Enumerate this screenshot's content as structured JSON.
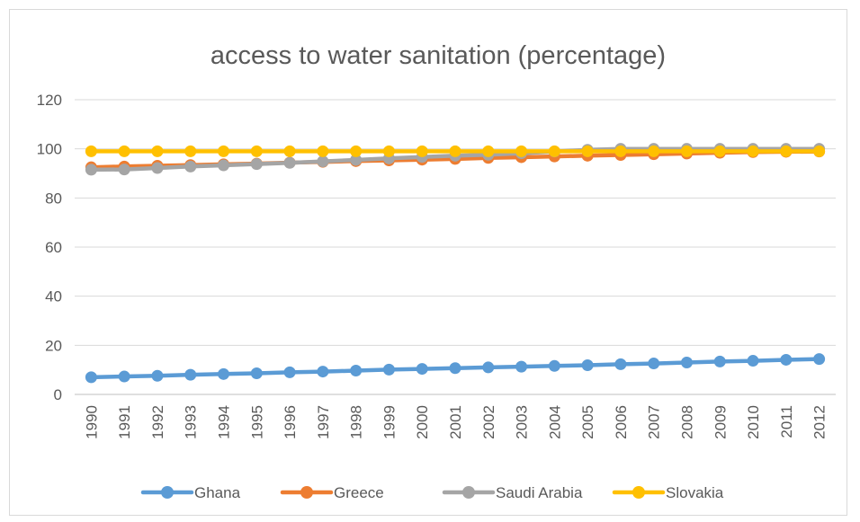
{
  "chart_data": {
    "type": "line",
    "title": "access to water sanitation (percentage)",
    "xlabel": "",
    "ylabel": "",
    "ylim": [
      0,
      120
    ],
    "yticks": [
      0,
      20,
      40,
      60,
      80,
      100,
      120
    ],
    "grid": true,
    "legend_position": "bottom",
    "x": [
      "1990",
      "1991",
      "1992",
      "1993",
      "1994",
      "1995",
      "1996",
      "1997",
      "1998",
      "1999",
      "2000",
      "2001",
      "2002",
      "2003",
      "2004",
      "2005",
      "2006",
      "2007",
      "2008",
      "2009",
      "2010",
      "2011",
      "2012"
    ],
    "series": [
      {
        "name": "Ghana",
        "color": "#5b9bd5",
        "values": [
          7.0,
          7.3,
          7.6,
          8.0,
          8.3,
          8.6,
          9.0,
          9.3,
          9.7,
          10.1,
          10.4,
          10.7,
          11.0,
          11.3,
          11.6,
          11.9,
          12.3,
          12.6,
          13.0,
          13.4,
          13.7,
          14.1,
          14.4
        ]
      },
      {
        "name": "Greece",
        "color": "#ed7d31",
        "values": [
          92.5,
          92.8,
          93.1,
          93.4,
          93.7,
          94.0,
          94.4,
          94.7,
          95.0,
          95.3,
          95.6,
          95.9,
          96.3,
          96.6,
          96.9,
          97.2,
          97.5,
          97.8,
          98.1,
          98.4,
          98.7,
          98.8,
          98.9
        ]
      },
      {
        "name": "Saudi Arabia",
        "color": "#a5a5a5",
        "values": [
          91.5,
          91.6,
          92.2,
          92.8,
          93.3,
          93.8,
          94.3,
          94.9,
          95.5,
          96.1,
          96.7,
          97.2,
          97.6,
          98.2,
          98.9,
          99.6,
          100.0,
          100.0,
          100.0,
          100.0,
          100.0,
          100.0,
          100.0
        ]
      },
      {
        "name": "Slovakia",
        "color": "#ffc000",
        "values": [
          99.0,
          99.0,
          99.0,
          99.0,
          99.0,
          99.0,
          99.0,
          99.0,
          99.0,
          99.0,
          99.0,
          99.0,
          99.0,
          99.0,
          99.0,
          99.0,
          99.0,
          99.0,
          99.0,
          99.0,
          99.0,
          99.0,
          99.0
        ]
      }
    ]
  }
}
